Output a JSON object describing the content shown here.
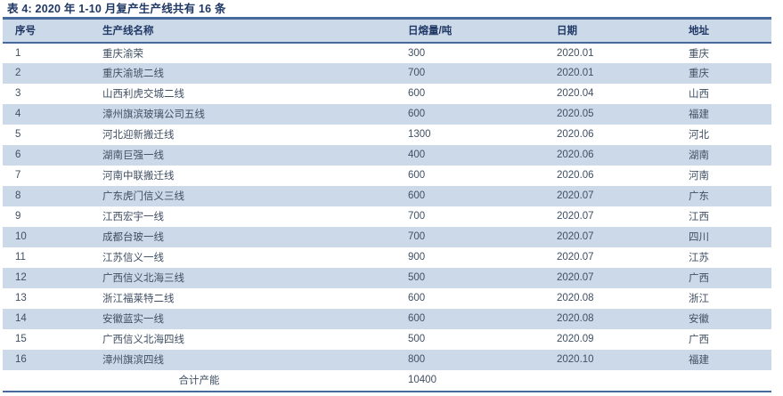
{
  "table": {
    "title": "表 4:  2020 年 1-10 月复产生产线共有 16 条",
    "columns": [
      "序号",
      "生产线名称",
      "日熔量/吨",
      "日期",
      "地址"
    ],
    "rows": [
      [
        "1",
        "重庆渝荣",
        "300",
        "2020.01",
        "重庆"
      ],
      [
        "2",
        "重庆渝琥二线",
        "700",
        "2020.01",
        "重庆"
      ],
      [
        "3",
        "山西利虎交城二线",
        "600",
        "2020.04",
        "山西"
      ],
      [
        "4",
        "漳州旗滨玻璃公司五线",
        "600",
        "2020.05",
        "福建"
      ],
      [
        "5",
        "河北迎新搬迁线",
        "1300",
        "2020.06",
        "河北"
      ],
      [
        "6",
        "湖南巨强一线",
        "400",
        "2020.06",
        "湖南"
      ],
      [
        "7",
        "河南中联搬迁线",
        "600",
        "2020.06",
        "河南"
      ],
      [
        "8",
        "广东虎门信义三线",
        "600",
        "2020.07",
        "广东"
      ],
      [
        "9",
        "江西宏宇一线",
        "700",
        "2020.07",
        "江西"
      ],
      [
        "10",
        "成都台玻一线",
        "700",
        "2020.07",
        "四川"
      ],
      [
        "11",
        "江苏信义一线",
        "900",
        "2020.07",
        "江苏"
      ],
      [
        "12",
        "广西信义北海三线",
        "500",
        "2020.07",
        "广西"
      ],
      [
        "13",
        "浙江福莱特二线",
        "600",
        "2020.08",
        "浙江"
      ],
      [
        "14",
        "安徽蓝实一线",
        "600",
        "2020.08",
        "安徽"
      ],
      [
        "15",
        "广西信义北海四线",
        "500",
        "2020.09",
        "广西"
      ],
      [
        "16",
        "漳州旗滨四线",
        "800",
        "2020.10",
        "福建"
      ]
    ],
    "footer": {
      "label": "合计产能",
      "total": "10400"
    }
  },
  "colors": {
    "title_text": "#1f3864",
    "header_bg": "#ccd9e9",
    "stripe_bg": "#ccd9e9",
    "body_text": "#404f63",
    "border_line": "#466a9b"
  }
}
